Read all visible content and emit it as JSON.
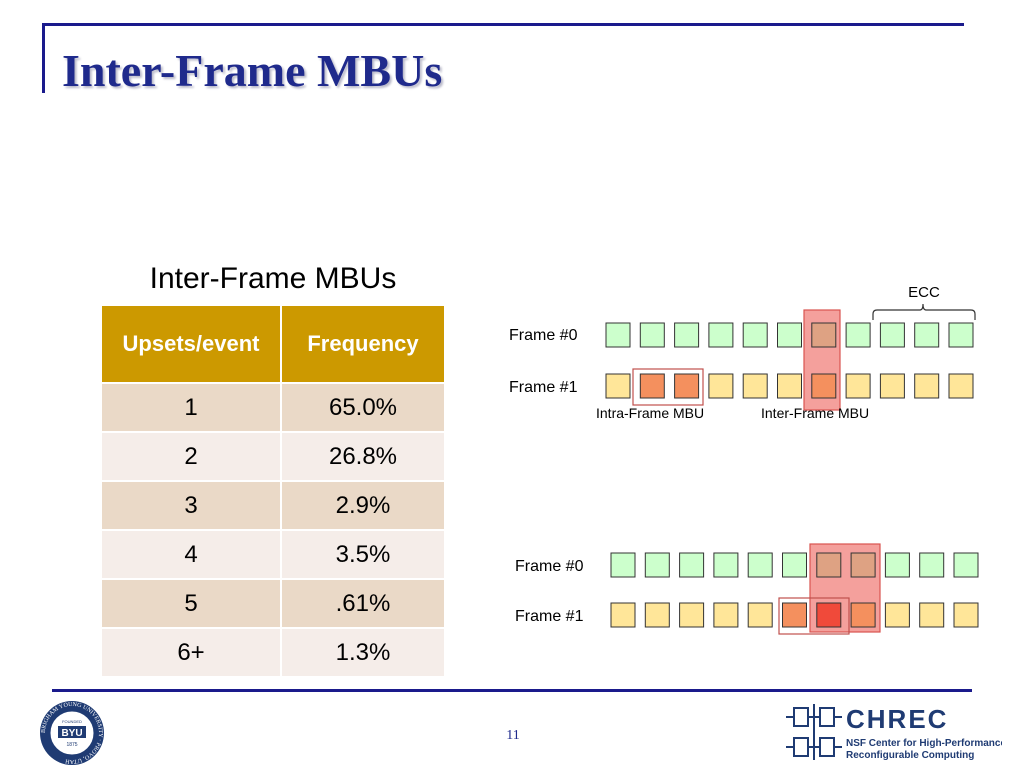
{
  "title": "Inter-Frame MBUs",
  "page_number": "11",
  "table": {
    "caption": "Inter-Frame MBUs",
    "headers": [
      "Upsets/event",
      "Frequency"
    ],
    "rows": [
      {
        "upsets": "1",
        "frequency": "65.0%"
      },
      {
        "upsets": "2",
        "frequency": "26.8%"
      },
      {
        "upsets": "3",
        "frequency": "2.9%"
      },
      {
        "upsets": "4",
        "frequency": "3.5%"
      },
      {
        "upsets": "5",
        "frequency": ".61%"
      },
      {
        "upsets": "6+",
        "frequency": "1.3%"
      }
    ]
  },
  "diagram_top": {
    "frame0_label": "Frame #0",
    "frame1_label": "Frame #1",
    "ecc_label": "ECC",
    "intra_label": "Intra-Frame MBU",
    "inter_label": "Inter-Frame MBU",
    "frame0_cells": [
      "g",
      "g",
      "g",
      "g",
      "g",
      "g",
      "p",
      "g",
      "g",
      "g",
      "g"
    ],
    "frame1_cells": [
      "y",
      "o",
      "o",
      "y",
      "y",
      "y",
      "o",
      "y",
      "y",
      "y",
      "y"
    ]
  },
  "diagram_bottom": {
    "frame0_label": "Frame #0",
    "frame1_label": "Frame #1",
    "frame0_cells": [
      "g",
      "g",
      "g",
      "g",
      "g",
      "g",
      "p",
      "p",
      "g",
      "g",
      "g"
    ],
    "frame1_cells": [
      "y",
      "y",
      "y",
      "y",
      "y",
      "o",
      "r",
      "o",
      "y",
      "y",
      "y"
    ]
  },
  "logos": {
    "byu_text": "BYU",
    "byu_ring_text": "BRIGHAM YOUNG UNIVERSITY · PROVO, UTAH",
    "byu_founded": "FOUNDED",
    "byu_year": "1875",
    "chrec_name": "CHREC",
    "chrec_line1": "NSF Center for High-Performance",
    "chrec_line2": "Reconfigurable Computing"
  },
  "colors": {
    "title": "#1f2a8c",
    "accent_line": "#1a1a8c",
    "table_header": "#cc9900",
    "cell_green": "#ccffcc",
    "cell_yellow": "#ffe699",
    "cell_orange": "#f4905e",
    "cell_red": "#f04a3a",
    "cell_pink": "#dea283",
    "highlight": "#f4a09c"
  }
}
